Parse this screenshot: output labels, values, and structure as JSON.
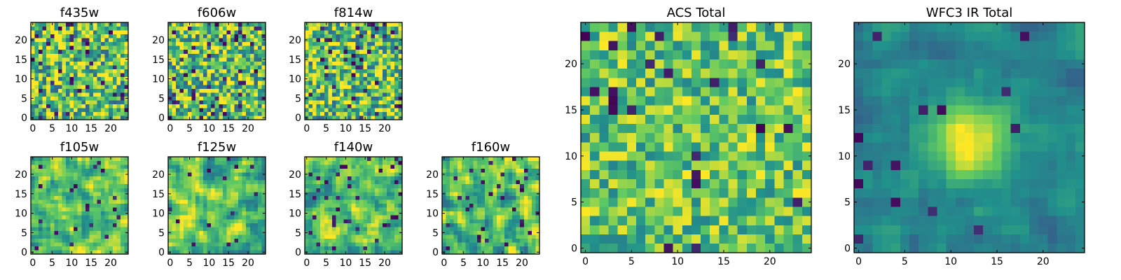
{
  "chart_data": [
    {
      "type": "heatmap",
      "title": "f435w",
      "grid_size": 25,
      "xlim": [
        -0.5,
        24.5
      ],
      "ylim": [
        -0.5,
        24.5
      ],
      "xticks": [
        0,
        5,
        10,
        15,
        20
      ],
      "yticks": [
        0,
        5,
        10,
        15,
        20
      ],
      "pattern": "noise",
      "noise_amplitude": 0.5,
      "dark_fraction": 0.07,
      "seed": 11
    },
    {
      "type": "heatmap",
      "title": "f606w",
      "grid_size": 25,
      "xlim": [
        -0.5,
        24.5
      ],
      "ylim": [
        -0.5,
        24.5
      ],
      "xticks": [
        0,
        5,
        10,
        15,
        20
      ],
      "yticks": [
        0,
        5,
        10,
        15,
        20
      ],
      "pattern": "noise",
      "noise_amplitude": 0.5,
      "dark_fraction": 0.07,
      "seed": 23
    },
    {
      "type": "heatmap",
      "title": "f814w",
      "grid_size": 25,
      "xlim": [
        -0.5,
        24.5
      ],
      "ylim": [
        -0.5,
        24.5
      ],
      "xticks": [
        0,
        5,
        10,
        15,
        20
      ],
      "yticks": [
        0,
        5,
        10,
        15,
        20
      ],
      "pattern": "noise",
      "noise_amplitude": 0.5,
      "dark_fraction": 0.07,
      "seed": 37
    },
    {
      "type": "heatmap",
      "title": "f105w",
      "grid_size": 25,
      "xlim": [
        -0.5,
        24.5
      ],
      "ylim": [
        -0.5,
        24.5
      ],
      "xticks": [
        0,
        5,
        10,
        15,
        20
      ],
      "yticks": [
        0,
        5,
        10,
        15,
        20
      ],
      "pattern": "smooth",
      "noise_amplitude": 0.4,
      "dark_fraction": 0.04,
      "seed": 41
    },
    {
      "type": "heatmap",
      "title": "f125w",
      "grid_size": 25,
      "xlim": [
        -0.5,
        24.5
      ],
      "ylim": [
        -0.5,
        24.5
      ],
      "xticks": [
        0,
        5,
        10,
        15,
        20
      ],
      "yticks": [
        0,
        5,
        10,
        15,
        20
      ],
      "pattern": "smooth",
      "noise_amplitude": 0.4,
      "dark_fraction": 0.03,
      "seed": 53
    },
    {
      "type": "heatmap",
      "title": "f140w",
      "grid_size": 25,
      "xlim": [
        -0.5,
        24.5
      ],
      "ylim": [
        -0.5,
        24.5
      ],
      "xticks": [
        0,
        5,
        10,
        15,
        20
      ],
      "yticks": [
        0,
        5,
        10,
        15,
        20
      ],
      "pattern": "smooth",
      "noise_amplitude": 0.4,
      "dark_fraction": 0.04,
      "seed": 67
    },
    {
      "type": "heatmap",
      "title": "f160w",
      "grid_size": 25,
      "xlim": [
        -0.5,
        24.5
      ],
      "ylim": [
        -0.5,
        24.5
      ],
      "xticks": [
        0,
        5,
        10,
        15,
        20
      ],
      "yticks": [
        0,
        5,
        10,
        15,
        20
      ],
      "pattern": "smooth",
      "noise_amplitude": 0.45,
      "dark_fraction": 0.06,
      "seed": 79
    },
    {
      "type": "heatmap",
      "title": "ACS Total",
      "grid_size": 25,
      "xlim": [
        -0.5,
        24.5
      ],
      "ylim": [
        -0.5,
        24.5
      ],
      "xticks": [
        0,
        5,
        10,
        15,
        20
      ],
      "yticks": [
        0,
        5,
        10,
        15,
        20
      ],
      "pattern": "noise",
      "noise_amplitude": 0.35,
      "dark_fraction": 0.04,
      "seed": 97
    },
    {
      "type": "heatmap",
      "title": "WFC3 IR Total",
      "grid_size": 25,
      "xlim": [
        -0.5,
        24.5
      ],
      "ylim": [
        -0.5,
        24.5
      ],
      "xticks": [
        0,
        5,
        10,
        15,
        20
      ],
      "yticks": [
        0,
        5,
        10,
        15,
        20
      ],
      "pattern": "source",
      "source_center": [
        12,
        11.5
      ],
      "source_sigma": 3,
      "noise_amplitude": 0.25,
      "dark_fraction": 0.03,
      "seed": 113
    }
  ],
  "colormap": [
    "#440154",
    "#3b528b",
    "#21918c",
    "#5ec962",
    "#fde725"
  ]
}
